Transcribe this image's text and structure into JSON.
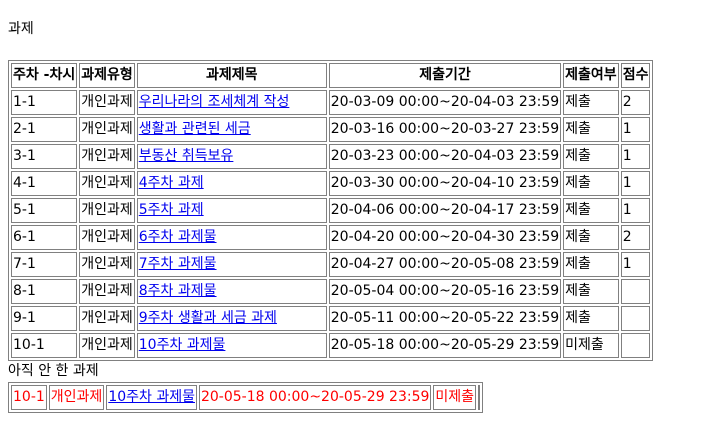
{
  "page": {
    "title": "과제",
    "pending_title": "아직 안 한 과제"
  },
  "table": {
    "headers": [
      "주차 -차시",
      "과제유형",
      "과제제목",
      "제출기간",
      "제출여부",
      "점수"
    ],
    "rows": [
      {
        "week": "1-1",
        "type": "개인과제",
        "title": "우리나라의 조세체계 작성",
        "period": "20-03-09 00:00~20-04-03 23:59",
        "status": "제출",
        "score": "2"
      },
      {
        "week": "2-1",
        "type": "개인과제",
        "title": "생활과 관련된 세금",
        "period": "20-03-16 00:00~20-03-27 23:59",
        "status": "제출",
        "score": "1"
      },
      {
        "week": "3-1",
        "type": "개인과제",
        "title": "부동산 취득보유",
        "period": "20-03-23 00:00~20-04-03 23:59",
        "status": "제출",
        "score": "1"
      },
      {
        "week": "4-1",
        "type": "개인과제",
        "title": "4주차 과제",
        "period": "20-03-30 00:00~20-04-10 23:59",
        "status": "제출",
        "score": "1"
      },
      {
        "week": "5-1",
        "type": "개인과제",
        "title": "5주차 과제",
        "period": "20-04-06 00:00~20-04-17 23:59",
        "status": "제출",
        "score": "1"
      },
      {
        "week": "6-1",
        "type": "개인과제",
        "title": "6주차 과제물",
        "period": "20-04-20 00:00~20-04-30 23:59",
        "status": "제출",
        "score": "2"
      },
      {
        "week": "7-1",
        "type": "개인과제",
        "title": "7주차 과제물",
        "period": "20-04-27 00:00~20-05-08 23:59",
        "status": "제출",
        "score": "1"
      },
      {
        "week": "8-1",
        "type": "개인과제",
        "title": "8주차 과제물",
        "period": "20-05-04 00:00~20-05-16 23:59",
        "status": "제출",
        "score": ""
      },
      {
        "week": "9-1",
        "type": "개인과제",
        "title": "9주차 생활과 세금 과제",
        "period": "20-05-11 00:00~20-05-22 23:59",
        "status": "제출",
        "score": ""
      },
      {
        "week": "10-1",
        "type": "개인과제",
        "title": "10주차 과제물",
        "period": "20-05-18 00:00~20-05-29 23:59",
        "status": "미제출",
        "score": ""
      }
    ]
  },
  "pending": {
    "rows": [
      {
        "week": "10-1",
        "type": "개인과제",
        "title": "10주차 과제물",
        "period": "20-05-18 00:00~20-05-29 23:59",
        "status": "미제출"
      }
    ]
  },
  "colors": {
    "link": "#0000ee",
    "pending_text": "#ff0000",
    "border": "#808080"
  }
}
